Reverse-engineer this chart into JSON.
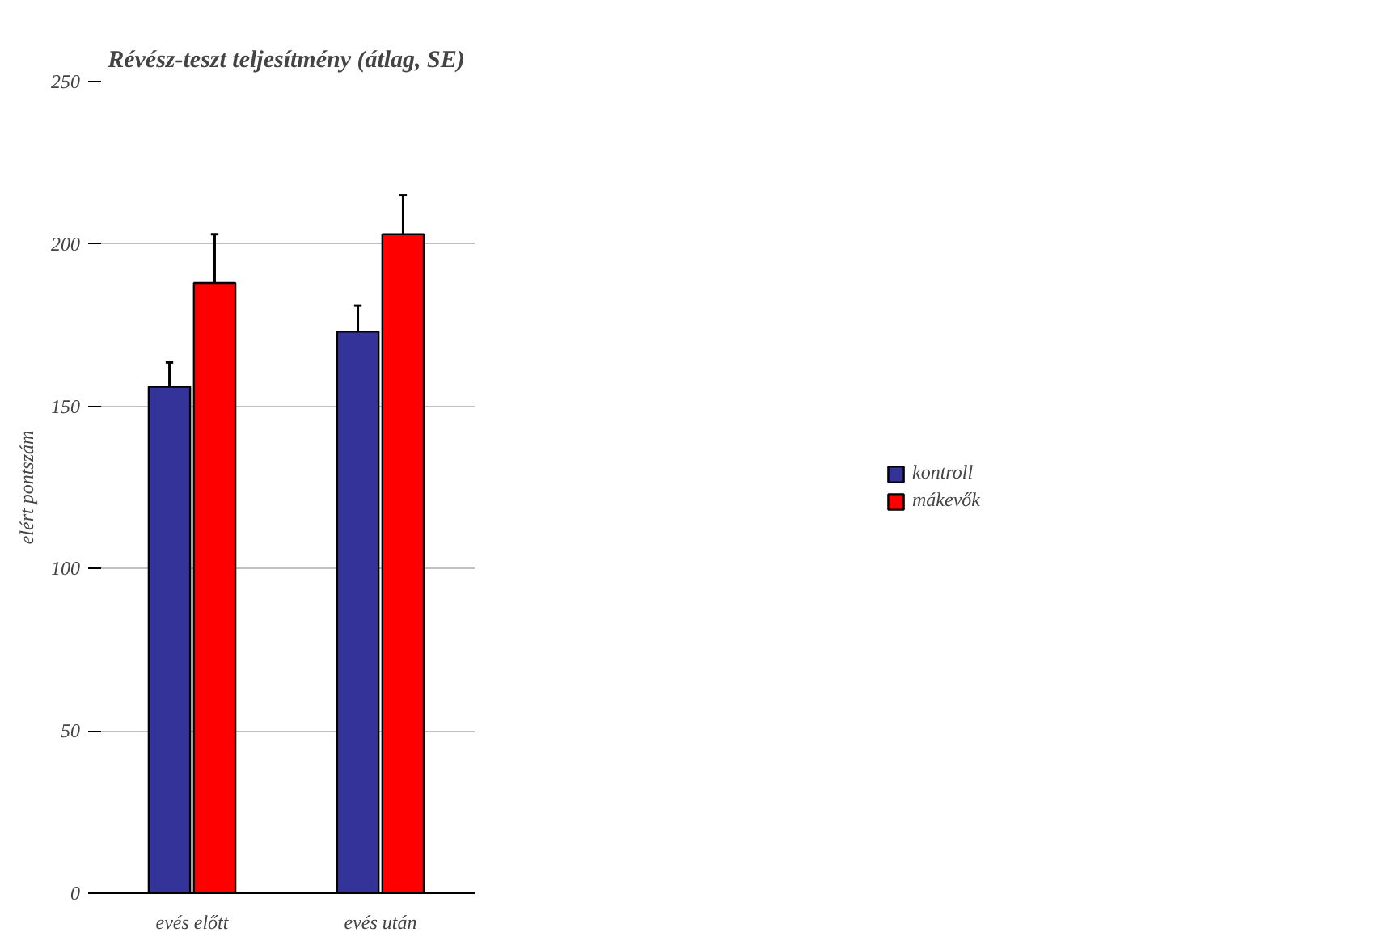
{
  "chart_data": {
    "type": "bar",
    "title": "Révész-teszt teljesítmény (átlag, SE)",
    "ylabel": "elért pontszám",
    "categories": [
      "evés előtt",
      "evés után"
    ],
    "series": [
      {
        "name": "kontroll",
        "color": "#333399",
        "values": [
          156,
          173
        ],
        "errors": [
          7.5,
          8
        ]
      },
      {
        "name": "mákevők",
        "color": "#ff0000",
        "values": [
          188,
          203
        ],
        "errors": [
          15,
          12
        ]
      }
    ],
    "ylim": [
      0,
      250
    ],
    "yticks": [
      0,
      50,
      100,
      150,
      200,
      250
    ],
    "grid": "y",
    "legend": "right"
  }
}
